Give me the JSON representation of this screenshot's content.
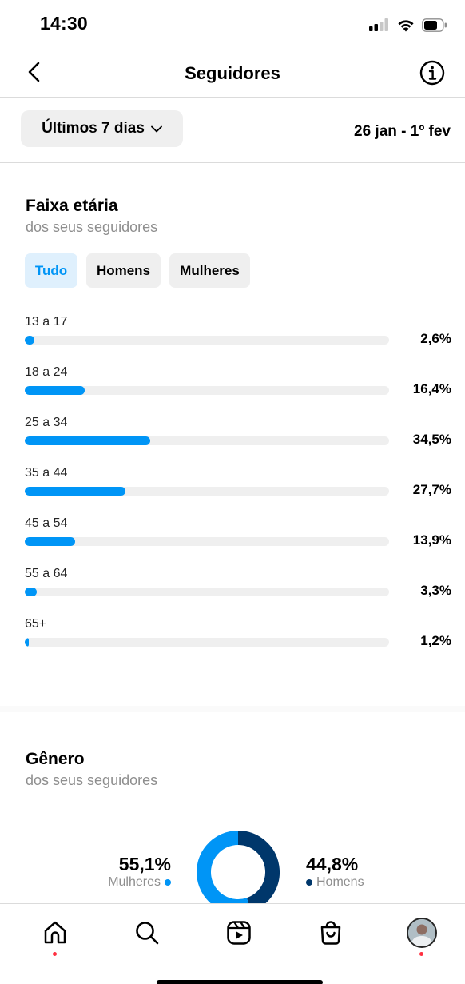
{
  "status_bar": {
    "time": "14:30"
  },
  "header": {
    "title": "Seguidores"
  },
  "filters": {
    "period": "Últimos 7 dias",
    "date_range": "26 jan - 1º fev"
  },
  "age": {
    "title": "Faixa etária",
    "subtitle": "dos seus seguidores",
    "tabs": [
      {
        "label": "Tudo",
        "active": true
      },
      {
        "label": "Homens",
        "active": false
      },
      {
        "label": "Mulheres",
        "active": false
      }
    ],
    "rows": [
      {
        "label": "13 a 17",
        "value": 2.6,
        "display": "2,6%"
      },
      {
        "label": "18 a 24",
        "value": 16.4,
        "display": "16,4%"
      },
      {
        "label": "25 a 34",
        "value": 34.5,
        "display": "34,5%"
      },
      {
        "label": "35 a 44",
        "value": 27.7,
        "display": "27,7%"
      },
      {
        "label": "45 a 54",
        "value": 13.9,
        "display": "13,9%"
      },
      {
        "label": "55 a 64",
        "value": 3.3,
        "display": "3,3%"
      },
      {
        "label": "65+",
        "value": 1.2,
        "display": "1,2%"
      }
    ],
    "bar_scale_max": 100
  },
  "gender": {
    "title": "Gênero",
    "subtitle": "dos seus seguidores",
    "women": {
      "value": 55.1,
      "display": "55,1%",
      "label": "Mulheres",
      "color": "#0095f6"
    },
    "men": {
      "value": 44.8,
      "display": "44,8%",
      "label": "Homens",
      "color": "#00376b"
    }
  },
  "tabbar": {
    "items": [
      {
        "name": "home-icon",
        "dot": true
      },
      {
        "name": "search-icon",
        "dot": false
      },
      {
        "name": "reels-icon",
        "dot": false
      },
      {
        "name": "shop-icon",
        "dot": false
      },
      {
        "name": "profile-avatar",
        "dot": true
      }
    ]
  },
  "colors": {
    "accent": "#0095f6",
    "track": "#efefef",
    "secondary_text": "#8e8e8e",
    "notification": "#ff3040"
  }
}
